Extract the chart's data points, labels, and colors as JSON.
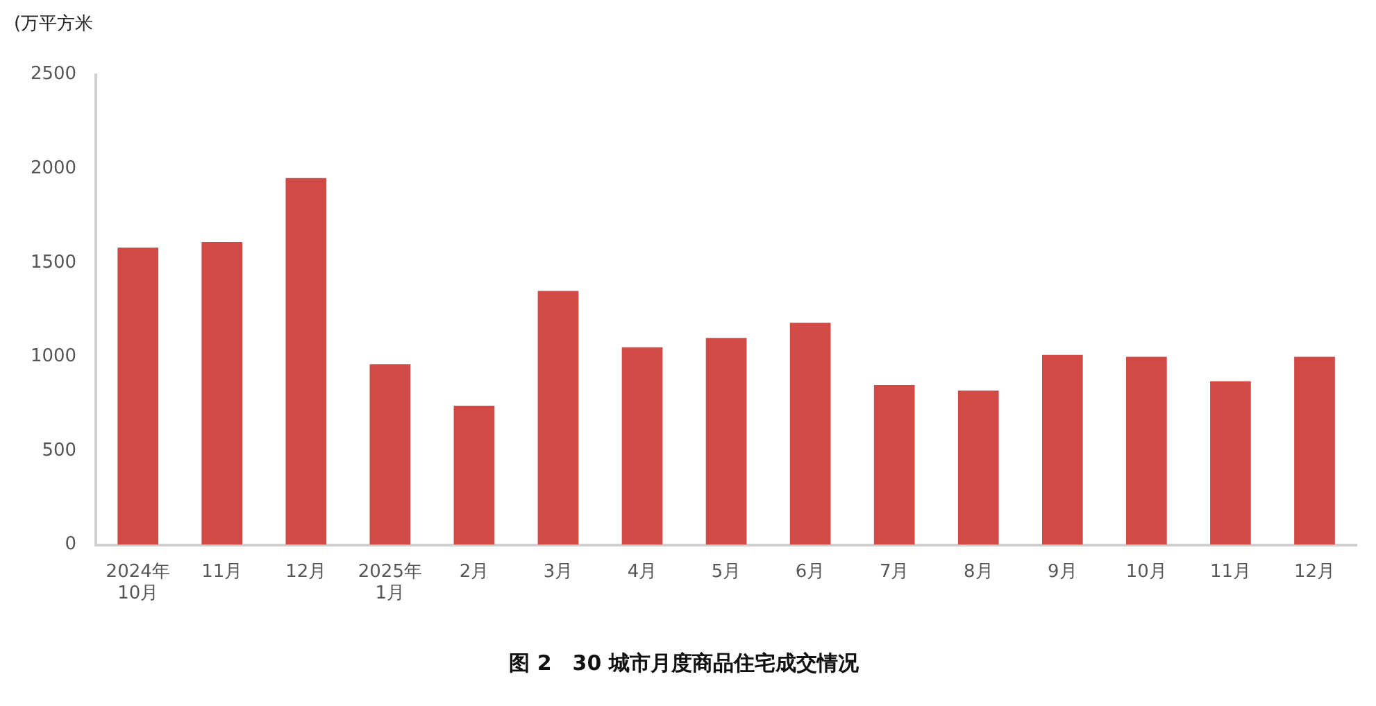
{
  "chart_data": {
    "type": "bar",
    "title": "图 2　30 城市月度商品住宅成交情况",
    "ylabel": "(万平方米",
    "categories": [
      "2024年\n10月",
      "11月",
      "12月",
      "2025年\n1月",
      "2月",
      "3月",
      "4月",
      "5月",
      "6月",
      "7月",
      "8月",
      "9月",
      "10月",
      "11月",
      "12月"
    ],
    "values": [
      1580,
      1610,
      1950,
      960,
      740,
      1350,
      1050,
      1100,
      1180,
      850,
      820,
      1010,
      1000,
      870,
      1000
    ],
    "color": "#d24a45",
    "ylim": [
      0,
      2500
    ],
    "yticks": [
      0,
      500,
      1000,
      1500,
      2000,
      2500
    ],
    "grid": false,
    "legend": false
  }
}
